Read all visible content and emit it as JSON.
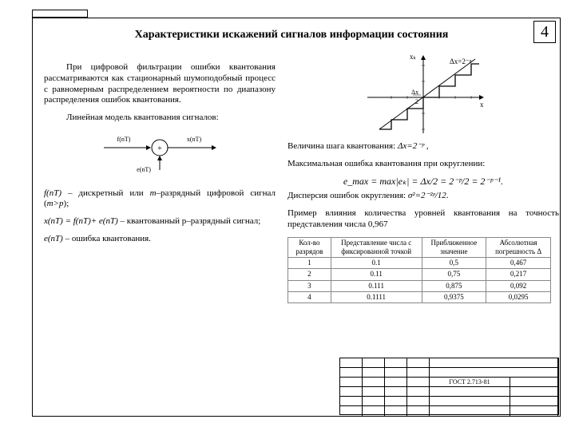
{
  "page_number": "4",
  "title": "Характеристики искажений сигналов информации состояния",
  "left": {
    "para1": "При цифровой фильтрации ошибки квантования рассматриваются как стационарный шумоподобный процесс с равномерным распределением вероятности по диапазону распределения ошибок квантования.",
    "model_intro": "Линейная модель квантования сигналов:",
    "diag_labels": {
      "l1": "f(nT)",
      "l2": "x(nT)",
      "l3": "e(nT)"
    },
    "def1a": "f(nT)",
    "def1b": " – дискретный или ",
    "def1c": "m",
    "def1d": "–разрядный цифровой сигнал (",
    "def1e": "m>p",
    "def1f": ");",
    "def2a": "x(nT) = f(nT)+ e(nT)",
    "def2b": " – квантованный p–разрядный сигнал;",
    "def3a": "e(nT)",
    "def3b": " – ошибка квантования."
  },
  "right": {
    "graph_labels": {
      "y": "xₖ",
      "dx": "Δx=2⁻ᵖ",
      "x": "x",
      "h1": "Δx",
      "h2": "2"
    },
    "step_a": "Величина шага квантования: ",
    "step_b": "Δx=2⁻ᵖ",
    "step_c": " ,",
    "maxerr": "Максимальная ошибка квантования при округлении:",
    "formula_img": "e_max = max|eₖ| = Δx/2 = 2⁻ᵖ/2 = 2⁻ᵖ⁻¹.",
    "disp_a": "Дисперсия ошибок округления: ",
    "disp_b": "σ²=2⁻²ᵖ/12",
    "disp_c": ".",
    "example": "Пример влияния количества уровней квантования на точность представления числа 0,967",
    "table": {
      "headers": [
        "Кол-во разрядов",
        "Представление числа с фиксированной точкой",
        "Приближенное значение",
        "Абсолютная погрешность Δ"
      ],
      "rows": [
        [
          "1",
          "0.1",
          "0,5",
          "0,467"
        ],
        [
          "2",
          "0.11",
          "0,75",
          "0,217"
        ],
        [
          "3",
          "0.111",
          "0,875",
          "0,092"
        ],
        [
          "4",
          "0.1111",
          "0,9375",
          "0,0295"
        ]
      ]
    }
  },
  "stamp": {
    "code": "ГОСТ 2.713-81"
  }
}
